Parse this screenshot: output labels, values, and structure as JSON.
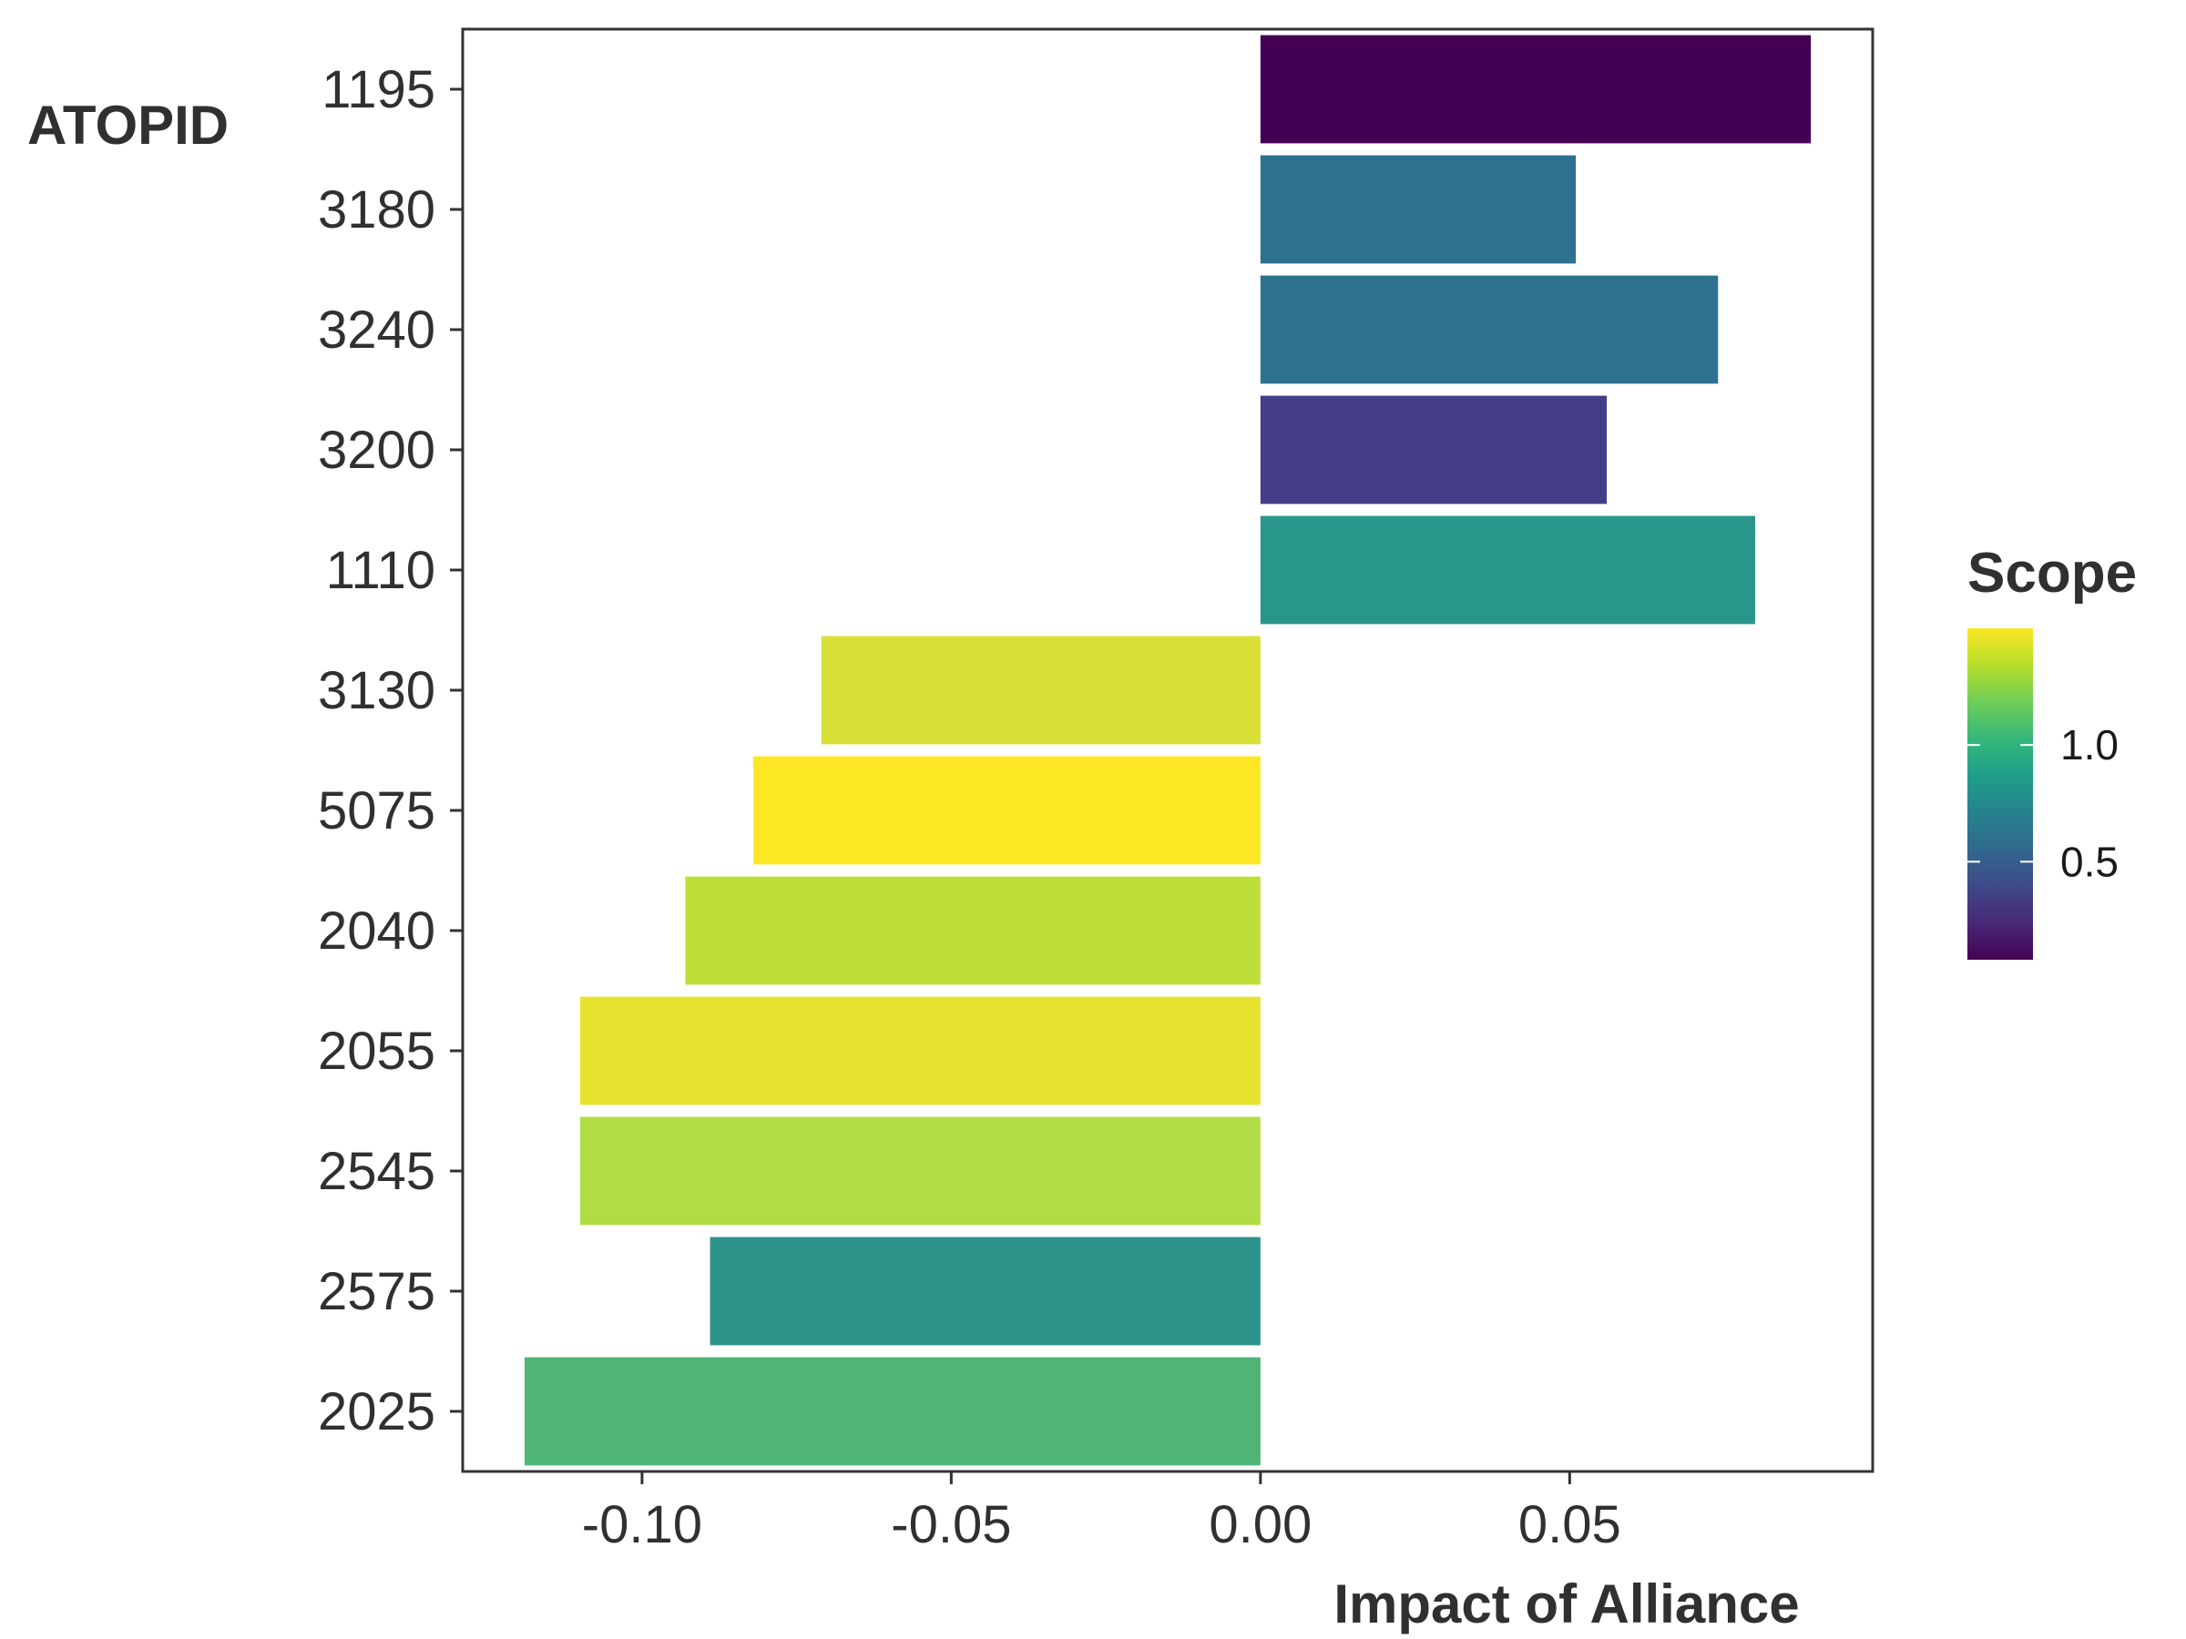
{
  "chart_data": {
    "type": "bar",
    "orientation": "horizontal",
    "xlabel": "Impact of Alliance",
    "ylabel": "ATOPID",
    "xlim": [
      -0.129,
      0.099
    ],
    "x_ticks": [
      -0.1,
      -0.05,
      0.0,
      0.05
    ],
    "x_tick_labels": [
      "-0.10",
      "-0.05",
      "0.00",
      "0.05"
    ],
    "grid": false,
    "categories": [
      "1195",
      "3180",
      "3240",
      "3200",
      "1110",
      "3130",
      "5075",
      "2040",
      "2055",
      "2545",
      "2575",
      "2025"
    ],
    "values": [
      0.089,
      0.051,
      0.074,
      0.056,
      0.08,
      -0.071,
      -0.082,
      -0.093,
      -0.11,
      -0.11,
      -0.089,
      -0.119
    ],
    "scope": [
      0.08,
      0.68,
      0.68,
      0.36,
      0.86,
      1.36,
      1.5,
      1.3,
      1.42,
      1.28,
      0.86,
      1.04
    ],
    "colors": [
      "#440154",
      "#2d718e",
      "#2d718e",
      "#433e85",
      "#29968b",
      "#d8e036",
      "#fde725",
      "#bddf38",
      "#e5e32e",
      "#b0dd44",
      "#2c928a",
      "#4eb577"
    ],
    "legend": {
      "title": "Scope",
      "position": "right",
      "range": [
        0.08,
        1.5
      ],
      "ticks": [
        0.5,
        1.0
      ],
      "tick_labels": [
        "0.5",
        "1.0"
      ],
      "colormap": [
        "#440154",
        "#482878",
        "#3e4989",
        "#31688e",
        "#26828e",
        "#1f9e89",
        "#35b779",
        "#6ece58",
        "#b5de2b",
        "#fde725"
      ]
    }
  }
}
